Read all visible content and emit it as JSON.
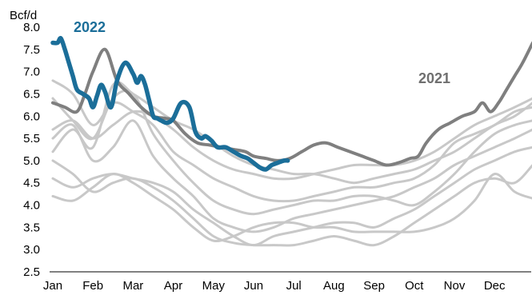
{
  "chart_data": {
    "type": "line",
    "ylabel": "Bcf/d",
    "ylim": [
      2.5,
      8.0
    ],
    "yticks": [
      "8.0",
      "7.5",
      "7.0",
      "6.5",
      "6.0",
      "5.5",
      "5.0",
      "4.5",
      "4.0",
      "3.5",
      "3.0",
      "2.5"
    ],
    "xticks": [
      "Jan",
      "Feb",
      "Mar",
      "Apr",
      "May",
      "Jun",
      "Jul",
      "Aug",
      "Sep",
      "Oct",
      "Nov",
      "Dec"
    ],
    "x_months": [
      1,
      1.5,
      2,
      2.5,
      3,
      3.5,
      4,
      4.5,
      5,
      5.5,
      6,
      6.5,
      7,
      7.5,
      8,
      8.5,
      9,
      9.5,
      10,
      10.5,
      11,
      11.5,
      12,
      12.5,
      12.95
    ],
    "annotations": [
      {
        "text": "2022",
        "series": "2022"
      },
      {
        "text": "2021",
        "series": "2021"
      }
    ],
    "colors": {
      "2022": "#1b6e99",
      "2021": "#7f7f7f",
      "history": "#c8c8c8"
    },
    "series": [
      {
        "name": "2022",
        "x": [
          1.0,
          1.12,
          1.2,
          1.3,
          1.4,
          1.5,
          1.6,
          1.75,
          1.9,
          2.0,
          2.1,
          2.2,
          2.3,
          2.45,
          2.6,
          2.8,
          3.0,
          3.1,
          3.2,
          3.3,
          3.4,
          3.5,
          3.6,
          3.7,
          3.85,
          4.0,
          4.2,
          4.4,
          4.55,
          4.7,
          4.8,
          4.95,
          5.1,
          5.3,
          5.5,
          5.7,
          5.85,
          6.0,
          6.15,
          6.3,
          6.45,
          6.6,
          6.75,
          6.85
        ],
        "values": [
          7.65,
          7.65,
          7.75,
          7.5,
          7.2,
          6.9,
          6.6,
          6.5,
          6.4,
          6.2,
          6.45,
          6.7,
          6.55,
          6.2,
          6.8,
          7.2,
          6.95,
          6.75,
          6.9,
          6.7,
          6.35,
          6.0,
          5.95,
          5.9,
          5.85,
          5.95,
          6.3,
          6.2,
          5.65,
          5.5,
          5.55,
          5.45,
          5.3,
          5.3,
          5.2,
          5.1,
          5.05,
          4.95,
          4.85,
          4.8,
          4.9,
          4.95,
          5.0,
          5.0
        ]
      },
      {
        "name": "2021",
        "x": [
          1,
          1.3,
          1.6,
          1.8,
          2.0,
          2.3,
          2.6,
          2.9,
          3.2,
          3.5,
          3.8,
          4.0,
          4.3,
          4.6,
          4.9,
          5.2,
          5.5,
          5.8,
          6.0,
          6.3,
          6.6,
          6.9,
          7.2,
          7.5,
          7.8,
          8.1,
          8.4,
          8.7,
          9.0,
          9.3,
          9.6,
          9.9,
          10.1,
          10.3,
          10.6,
          10.9,
          11.2,
          11.5,
          11.7,
          11.9,
          12.1,
          12.3,
          12.5,
          12.7,
          12.95
        ],
        "values": [
          6.3,
          6.2,
          6.1,
          6.5,
          7.0,
          7.5,
          6.8,
          6.5,
          6.2,
          6.0,
          5.95,
          5.9,
          5.6,
          5.4,
          5.35,
          5.3,
          5.25,
          5.2,
          5.1,
          5.05,
          5.0,
          5.05,
          5.2,
          5.35,
          5.4,
          5.3,
          5.2,
          5.1,
          5.0,
          4.9,
          4.95,
          5.05,
          5.1,
          5.4,
          5.7,
          5.85,
          6.0,
          6.1,
          6.3,
          6.1,
          6.3,
          6.6,
          6.9,
          7.2,
          7.65
        ]
      },
      {
        "name": "",
        "values": [
          5.7,
          5.9,
          5.5,
          5.8,
          6.1,
          6.0,
          5.7,
          5.3,
          5.0,
          4.8,
          4.7,
          4.6,
          4.6,
          4.7,
          4.8,
          4.9,
          4.9,
          4.9,
          5.0,
          5.2,
          5.5,
          5.8,
          6.0,
          6.2,
          6.4
        ]
      },
      {
        "name": "",
        "values": [
          6.8,
          6.5,
          5.8,
          6.3,
          6.1,
          5.8,
          5.2,
          4.9,
          4.6,
          4.4,
          4.2,
          4.1,
          4.1,
          4.2,
          4.3,
          4.4,
          4.4,
          4.5,
          4.6,
          4.9,
          5.4,
          5.6,
          5.8,
          6.1,
          6.2
        ]
      },
      {
        "name": "",
        "values": [
          5.2,
          5.7,
          5.3,
          6.7,
          6.5,
          6.2,
          5.9,
          5.7,
          5.4,
          5.1,
          4.9,
          4.8,
          4.7,
          4.7,
          4.6,
          4.5,
          4.6,
          4.7,
          4.8,
          5.0,
          5.2,
          5.5,
          5.8,
          6.0,
          6.3
        ]
      },
      {
        "name": "",
        "values": [
          6.4,
          5.9,
          5.5,
          6.4,
          6.5,
          5.6,
          5.0,
          4.5,
          4.1,
          3.9,
          3.8,
          3.9,
          4.0,
          4.1,
          4.1,
          4.2,
          4.2,
          4.1,
          4.0,
          4.3,
          4.7,
          5.2,
          5.6,
          5.8,
          5.9
        ]
      },
      {
        "name": "",
        "values": [
          5.5,
          5.8,
          5.0,
          5.3,
          5.9,
          5.1,
          4.6,
          4.2,
          3.7,
          3.5,
          3.4,
          3.5,
          3.7,
          3.8,
          3.9,
          4.0,
          4.1,
          4.2,
          4.4,
          4.6,
          4.9,
          5.1,
          5.3,
          5.5,
          5.7
        ]
      },
      {
        "name": "",
        "values": [
          4.6,
          4.4,
          4.6,
          4.7,
          4.6,
          4.5,
          4.3,
          3.9,
          3.6,
          3.3,
          3.1,
          3.3,
          3.4,
          3.5,
          3.6,
          3.6,
          3.5,
          3.7,
          3.9,
          4.2,
          4.5,
          4.8,
          5.0,
          5.2,
          5.3
        ]
      },
      {
        "name": "",
        "values": [
          5.0,
          4.7,
          4.3,
          4.5,
          4.6,
          4.4,
          4.1,
          3.7,
          3.3,
          3.15,
          3.1,
          3.1,
          3.1,
          3.2,
          3.3,
          3.2,
          3.1,
          3.3,
          3.6,
          3.9,
          4.2,
          4.5,
          4.6,
          4.5,
          4.9
        ]
      },
      {
        "name": "",
        "values": [
          4.2,
          4.1,
          4.4,
          4.7,
          4.5,
          4.2,
          3.9,
          3.5,
          3.2,
          3.3,
          3.5,
          3.6,
          3.6,
          3.5,
          3.5,
          3.4,
          3.4,
          3.4,
          3.4,
          3.5,
          3.7,
          4.1,
          4.7,
          4.3,
          4.15
        ]
      }
    ]
  }
}
